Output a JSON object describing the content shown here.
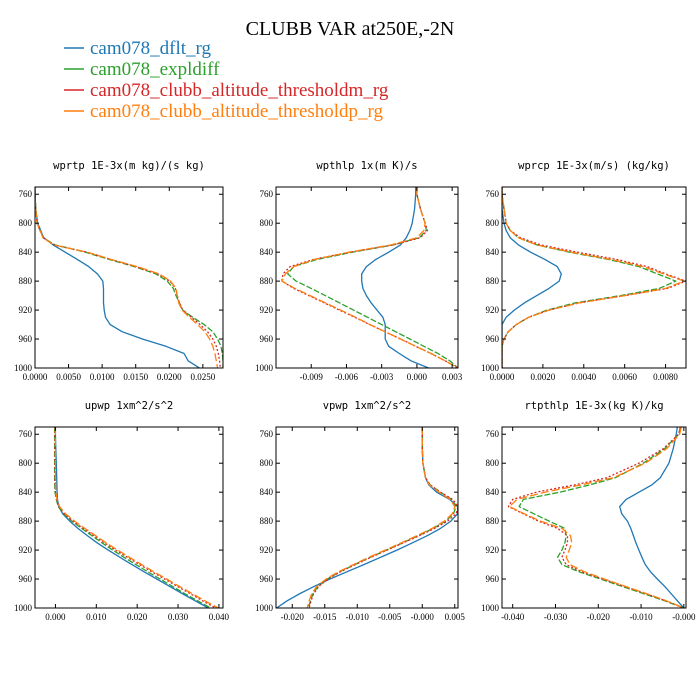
{
  "title": "CLUBB VAR at250E,-2N",
  "legend": [
    {
      "label": "cam078_dflt_rg",
      "color": "#1f77b4"
    },
    {
      "label": "cam078_expldiff",
      "color": "#2ca02c"
    },
    {
      "label": "cam078_clubb_altitude_thresholdm_rg",
      "color": "#d62728"
    },
    {
      "label": "cam078_clubb_altitude_thresholdp_rg",
      "color": "#ff7f0e"
    }
  ],
  "chart_data": [
    {
      "type": "line",
      "title": "wprtp  1E-3x(m kg)/(s kg)",
      "xlim": [
        0.0,
        0.028
      ],
      "ylim": [
        1000,
        750
      ],
      "xticks": [
        0.0,
        0.005,
        0.01,
        0.015,
        0.02,
        0.025
      ],
      "xtick_labels": [
        "0.0000",
        "0.0050",
        "0.0100",
        "0.0150",
        "0.0200",
        "0.0250"
      ],
      "yticks": [
        760,
        800,
        840,
        880,
        920,
        960,
        1000
      ],
      "y": [
        750,
        760,
        780,
        800,
        820,
        830,
        840,
        850,
        860,
        870,
        880,
        890,
        900,
        910,
        920,
        930,
        940,
        950,
        960,
        970,
        980,
        990,
        1000
      ],
      "series": [
        {
          "name": "cam078_dflt_rg",
          "values": [
            0.0,
            0.0,
            0.0001,
            0.0004,
            0.0013,
            0.0027,
            0.0045,
            0.0063,
            0.008,
            0.0093,
            0.0101,
            0.0102,
            0.0102,
            0.0102,
            0.0103,
            0.0105,
            0.0112,
            0.013,
            0.016,
            0.0195,
            0.0222,
            0.0228,
            0.0245
          ]
        },
        {
          "name": "cam078_expldiff",
          "values": [
            0.0,
            0.0,
            0.0001,
            0.0003,
            0.0012,
            0.003,
            0.0075,
            0.011,
            0.0148,
            0.018,
            0.0197,
            0.0206,
            0.021,
            0.0215,
            0.022,
            0.0235,
            0.0252,
            0.0265,
            0.0272,
            0.0277,
            0.0279,
            0.028,
            0.028
          ]
        },
        {
          "name": "cam078_clubb_altitude_thresholdm_rg",
          "values": [
            0.0,
            0.0,
            0.0001,
            0.0003,
            0.0012,
            0.0028,
            0.0078,
            0.0113,
            0.015,
            0.0183,
            0.0201,
            0.0209,
            0.0212,
            0.0215,
            0.022,
            0.0233,
            0.0246,
            0.0257,
            0.0265,
            0.027,
            0.0273,
            0.0275,
            0.0276
          ]
        },
        {
          "name": "cam078_clubb_altitude_thresholdp_rg",
          "values": [
            0.0,
            0.0,
            0.0001,
            0.0003,
            0.0012,
            0.0028,
            0.0078,
            0.0113,
            0.0152,
            0.0185,
            0.0202,
            0.021,
            0.0212,
            0.0214,
            0.0219,
            0.023,
            0.0242,
            0.0253,
            0.026,
            0.0265,
            0.0268,
            0.027,
            0.0272
          ]
        }
      ]
    },
    {
      "type": "line",
      "title": "wpthlp  1x(m K)/s",
      "xlim": [
        -0.012,
        0.0035
      ],
      "ylim": [
        1000,
        750
      ],
      "xticks": [
        -0.009,
        -0.006,
        -0.003,
        0.0,
        0.003
      ],
      "xtick_labels": [
        "-0.009",
        "-0.006",
        "-0.003",
        "0.000",
        "0.003"
      ],
      "yticks": [
        760,
        800,
        840,
        880,
        920,
        960,
        1000
      ],
      "y": [
        750,
        760,
        780,
        800,
        810,
        820,
        830,
        840,
        850,
        860,
        870,
        880,
        890,
        900,
        910,
        920,
        930,
        940,
        950,
        960,
        970,
        980,
        990,
        1000
      ],
      "series": [
        {
          "name": "cam078_dflt_rg",
          "values": [
            -0.0001,
            -0.0001,
            -0.0002,
            -0.0004,
            -0.0006,
            -0.0009,
            -0.0014,
            -0.0024,
            -0.0035,
            -0.0043,
            -0.0047,
            -0.0047,
            -0.0046,
            -0.0043,
            -0.0039,
            -0.0034,
            -0.0029,
            -0.0027,
            -0.0027,
            -0.0027,
            -0.0024,
            -0.0015,
            -0.0005,
            0.001
          ]
        },
        {
          "name": "cam078_expldiff",
          "values": [
            0.0,
            0.0,
            0.0003,
            0.0007,
            0.0008,
            0.0002,
            -0.002,
            -0.0055,
            -0.0085,
            -0.0105,
            -0.011,
            -0.0103,
            -0.009,
            -0.0078,
            -0.0066,
            -0.0054,
            -0.0042,
            -0.003,
            -0.0018,
            -0.0006,
            0.0006,
            0.0018,
            0.0028,
            0.0035
          ]
        },
        {
          "name": "cam078_clubb_altitude_thresholdm_rg",
          "values": [
            0.0,
            0.0,
            0.0003,
            0.0007,
            0.0009,
            0.0003,
            -0.002,
            -0.0057,
            -0.0088,
            -0.0108,
            -0.0114,
            -0.0115,
            -0.0105,
            -0.0092,
            -0.0079,
            -0.0066,
            -0.0053,
            -0.004,
            -0.0027,
            -0.0014,
            -0.0001,
            0.0012,
            0.0024,
            0.0035
          ]
        },
        {
          "name": "cam078_clubb_altitude_thresholdp_rg",
          "values": [
            0.0,
            0.0,
            0.0003,
            0.0007,
            0.0006,
            0.0,
            -0.0022,
            -0.0058,
            -0.0087,
            -0.0105,
            -0.0112,
            -0.0115,
            -0.0104,
            -0.0091,
            -0.0078,
            -0.0065,
            -0.0052,
            -0.004,
            -0.0027,
            -0.0014,
            -0.0001,
            0.0012,
            0.0024,
            0.0035
          ]
        }
      ]
    },
    {
      "type": "line",
      "title": "wprcp  1E-3x(m/s) (kg/kg)",
      "xlim": [
        0.0,
        0.009
      ],
      "ylim": [
        1000,
        750
      ],
      "xticks": [
        0.0,
        0.002,
        0.004,
        0.006,
        0.008
      ],
      "xtick_labels": [
        "0.0000",
        "0.0020",
        "0.0040",
        "0.0060",
        "0.0080"
      ],
      "yticks": [
        760,
        800,
        840,
        880,
        920,
        960,
        1000
      ],
      "y": [
        750,
        760,
        780,
        800,
        810,
        820,
        830,
        840,
        850,
        860,
        870,
        880,
        890,
        900,
        910,
        920,
        930,
        940,
        950,
        960,
        970,
        980,
        990,
        1000
      ],
      "series": [
        {
          "name": "cam078_dflt_rg",
          "values": [
            0.0,
            0.0,
            0.0,
            0.0001,
            0.0002,
            0.0004,
            0.0008,
            0.0014,
            0.0021,
            0.0027,
            0.0029,
            0.0028,
            0.0023,
            0.0017,
            0.0011,
            0.0006,
            0.0002,
            0.0,
            0.0,
            0.0,
            0.0,
            0.0,
            0.0,
            0.0
          ]
        },
        {
          "name": "cam078_expldiff",
          "values": [
            0.0,
            0.0,
            0.0001,
            0.0002,
            0.0004,
            0.0008,
            0.0017,
            0.0033,
            0.0052,
            0.0067,
            0.0076,
            0.0085,
            0.0077,
            0.0058,
            0.0036,
            0.0022,
            0.0013,
            0.0007,
            0.0003,
            0.0001,
            0.0,
            0.0,
            0.0,
            0.0
          ]
        },
        {
          "name": "cam078_clubb_altitude_thresholdm_rg",
          "values": [
            0.0,
            0.0,
            0.0001,
            0.0002,
            0.0004,
            0.0009,
            0.0019,
            0.0037,
            0.0056,
            0.0071,
            0.008,
            0.009,
            0.0081,
            0.006,
            0.0038,
            0.0023,
            0.0013,
            0.0007,
            0.0003,
            0.0001,
            0.0,
            0.0,
            0.0,
            0.0
          ]
        },
        {
          "name": "cam078_clubb_altitude_thresholdp_rg",
          "values": [
            0.0,
            0.0,
            0.0001,
            0.0002,
            0.0004,
            0.0008,
            0.0017,
            0.0034,
            0.0053,
            0.0069,
            0.0079,
            0.0089,
            0.008,
            0.006,
            0.0038,
            0.0023,
            0.0013,
            0.0007,
            0.0003,
            0.0001,
            0.0,
            0.0,
            0.0,
            0.0
          ]
        }
      ]
    },
    {
      "type": "line",
      "title": "upwp  1xm^2/s^2",
      "xlim": [
        -0.005,
        0.041
      ],
      "ylim": [
        1000,
        750
      ],
      "xticks": [
        0.0,
        0.01,
        0.02,
        0.03,
        0.04
      ],
      "xtick_labels": [
        "0.000",
        "0.010",
        "0.020",
        "0.030",
        "0.040"
      ],
      "yticks": [
        760,
        800,
        840,
        880,
        920,
        960,
        1000
      ],
      "y": [
        750,
        760,
        780,
        800,
        820,
        840,
        850,
        860,
        870,
        880,
        890,
        900,
        910,
        920,
        930,
        940,
        950,
        960,
        970,
        980,
        990,
        1000
      ],
      "series": [
        {
          "name": "cam078_dflt_rg",
          "values": [
            0.0,
            0.0,
            0.0001,
            0.0002,
            0.0003,
            0.0004,
            0.0005,
            0.0008,
            0.0018,
            0.0035,
            0.0055,
            0.0078,
            0.0102,
            0.0129,
            0.0158,
            0.0187,
            0.0217,
            0.0248,
            0.0279,
            0.031,
            0.0342,
            0.0374
          ]
        },
        {
          "name": "cam078_expldiff",
          "values": [
            -0.0002,
            -0.0002,
            -0.0002,
            -0.0002,
            -0.0002,
            -0.0001,
            0.0002,
            0.0007,
            0.002,
            0.004,
            0.0064,
            0.0089,
            0.0114,
            0.014,
            0.0168,
            0.0197,
            0.0226,
            0.0256,
            0.0286,
            0.0316,
            0.0348,
            0.038
          ]
        },
        {
          "name": "cam078_clubb_altitude_thresholdm_rg",
          "values": [
            -0.0001,
            -0.0001,
            -0.0001,
            -0.0001,
            -0.0001,
            0.0,
            0.0003,
            0.0008,
            0.0022,
            0.0043,
            0.0068,
            0.0094,
            0.012,
            0.0147,
            0.0176,
            0.0206,
            0.0236,
            0.0267,
            0.0298,
            0.0329,
            0.036,
            0.0392
          ]
        },
        {
          "name": "cam078_clubb_altitude_thresholdp_rg",
          "values": [
            0.0,
            0.0,
            0.0,
            0.0,
            0.0,
            0.0001,
            0.0004,
            0.001,
            0.0025,
            0.0047,
            0.0072,
            0.0098,
            0.0124,
            0.0152,
            0.0181,
            0.0211,
            0.0241,
            0.0272,
            0.0303,
            0.0334,
            0.0366,
            0.0398
          ]
        }
      ]
    },
    {
      "type": "line",
      "title": "vpwp  1xm^2/s^2",
      "xlim": [
        -0.0225,
        0.0055
      ],
      "ylim": [
        1000,
        750
      ],
      "xticks": [
        -0.02,
        -0.015,
        -0.01,
        -0.005,
        0.0,
        0.005
      ],
      "xtick_labels": [
        "-0.020",
        "-0.015",
        "-0.010",
        "-0.005",
        "-0.000",
        "0.005"
      ],
      "yticks": [
        760,
        800,
        840,
        880,
        920,
        960,
        1000
      ],
      "y": [
        750,
        760,
        780,
        800,
        820,
        830,
        840,
        850,
        860,
        870,
        880,
        890,
        900,
        910,
        920,
        930,
        940,
        950,
        960,
        970,
        980,
        990,
        1000
      ],
      "series": [
        {
          "name": "cam078_dflt_rg",
          "values": [
            0.0,
            0.0,
            0.0,
            0.0001,
            0.0005,
            0.001,
            0.0022,
            0.0042,
            0.0055,
            0.0054,
            0.0044,
            0.0028,
            0.0008,
            -0.0015,
            -0.0039,
            -0.0064,
            -0.009,
            -0.0116,
            -0.0142,
            -0.0166,
            -0.0188,
            -0.0208,
            -0.0224
          ]
        },
        {
          "name": "cam078_expldiff",
          "values": [
            0.0,
            0.0,
            0.0,
            0.0001,
            0.0005,
            0.0012,
            0.0028,
            0.0045,
            0.0052,
            0.0048,
            0.0036,
            0.0017,
            -0.0006,
            -0.003,
            -0.0055,
            -0.008,
            -0.0104,
            -0.0127,
            -0.0146,
            -0.016,
            -0.0168,
            -0.0172,
            -0.0175
          ]
        },
        {
          "name": "cam078_clubb_altitude_thresholdm_rg",
          "values": [
            0.0,
            0.0,
            0.0,
            0.0001,
            0.0005,
            0.0012,
            0.0028,
            0.0047,
            0.0055,
            0.0052,
            0.0039,
            0.0019,
            -0.0004,
            -0.0029,
            -0.0054,
            -0.0079,
            -0.0103,
            -0.0126,
            -0.0145,
            -0.0159,
            -0.0167,
            -0.0171,
            -0.0174
          ]
        },
        {
          "name": "cam078_clubb_altitude_thresholdp_rg",
          "values": [
            0.0,
            0.0,
            0.0,
            0.0001,
            0.0005,
            0.0011,
            0.0026,
            0.0043,
            0.005,
            0.0046,
            0.0034,
            0.0015,
            -0.0008,
            -0.0032,
            -0.0057,
            -0.0082,
            -0.0106,
            -0.0129,
            -0.0148,
            -0.0162,
            -0.017,
            -0.0174,
            -0.0177
          ]
        }
      ]
    },
    {
      "type": "line",
      "title": "rtpthlp  1E-3x(kg K)/kg",
      "xlim": [
        -0.0425,
        0.0005
      ],
      "ylim": [
        1000,
        750
      ],
      "xticks": [
        -0.04,
        -0.03,
        -0.02,
        -0.01,
        0.0
      ],
      "xtick_labels": [
        "-0.040",
        "-0.030",
        "-0.020",
        "-0.010",
        "-0.000"
      ],
      "yticks": [
        760,
        800,
        840,
        880,
        920,
        960,
        1000
      ],
      "y": [
        750,
        760,
        780,
        800,
        820,
        830,
        840,
        850,
        860,
        870,
        880,
        890,
        900,
        910,
        920,
        930,
        940,
        950,
        960,
        970,
        980,
        990,
        1000
      ],
      "series": [
        {
          "name": "cam078_dflt_rg",
          "values": [
            -0.0015,
            -0.0018,
            -0.0025,
            -0.0035,
            -0.0055,
            -0.0075,
            -0.0105,
            -0.0135,
            -0.015,
            -0.0145,
            -0.0132,
            -0.0124,
            -0.0118,
            -0.0112,
            -0.0105,
            -0.0098,
            -0.009,
            -0.0078,
            -0.0062,
            -0.0045,
            -0.003,
            -0.0015,
            0.0
          ]
        },
        {
          "name": "cam078_expldiff",
          "values": [
            -0.0008,
            -0.0012,
            -0.0045,
            -0.0095,
            -0.016,
            -0.022,
            -0.029,
            -0.0375,
            -0.0385,
            -0.035,
            -0.0315,
            -0.0278,
            -0.0275,
            -0.0278,
            -0.0285,
            -0.0295,
            -0.0285,
            -0.0245,
            -0.0195,
            -0.0145,
            -0.0095,
            -0.0045,
            0.0
          ]
        },
        {
          "name": "cam078_clubb_altitude_thresholdm_rg",
          "values": [
            -0.0008,
            -0.0012,
            -0.0048,
            -0.0105,
            -0.018,
            -0.0255,
            -0.0345,
            -0.04,
            -0.041,
            -0.0375,
            -0.034,
            -0.0295,
            -0.0272,
            -0.0272,
            -0.0278,
            -0.0285,
            -0.0275,
            -0.0238,
            -0.019,
            -0.014,
            -0.009,
            -0.0042,
            0.0
          ]
        },
        {
          "name": "cam078_clubb_altitude_thresholdp_rg",
          "values": [
            -0.0006,
            -0.001,
            -0.004,
            -0.009,
            -0.0165,
            -0.024,
            -0.0325,
            -0.039,
            -0.0408,
            -0.0372,
            -0.0335,
            -0.0285,
            -0.0265,
            -0.0262,
            -0.0268,
            -0.0275,
            -0.0266,
            -0.0232,
            -0.0186,
            -0.0137,
            -0.0088,
            -0.0041,
            0.0
          ]
        }
      ]
    }
  ]
}
